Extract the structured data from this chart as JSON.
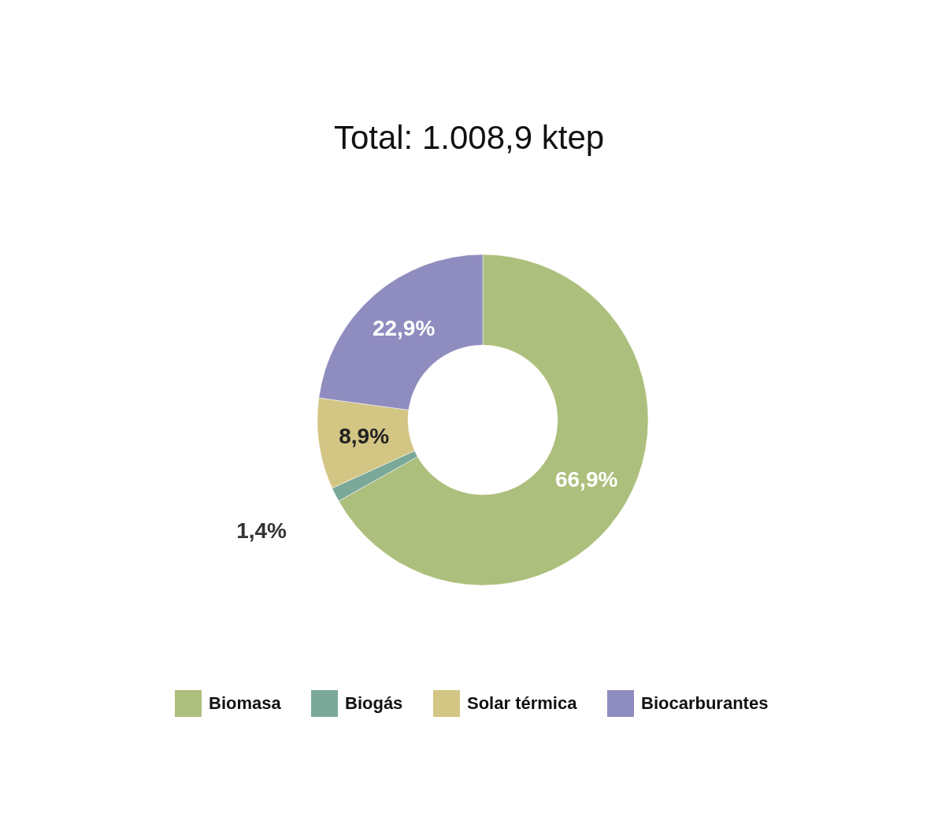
{
  "chart_data": {
    "type": "donut",
    "title": "Total: 1.008,9 ktep",
    "categories": [
      "Biomasa",
      "Biogás",
      "Solar térmica",
      "Biocarburantes"
    ],
    "values": [
      66.9,
      1.4,
      8.9,
      22.9
    ],
    "colors": [
      "#adbf7c",
      "#7aa99a",
      "#d3c584",
      "#8f8cbf"
    ],
    "value_labels": [
      "66,9%",
      "1,4%",
      "8,9%",
      "22,9%"
    ],
    "legend": "bottom"
  }
}
